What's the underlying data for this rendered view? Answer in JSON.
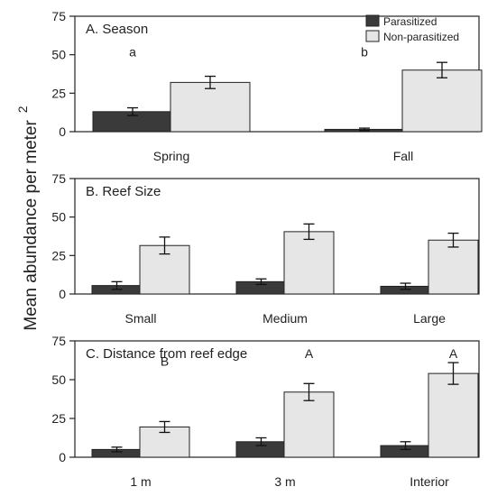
{
  "figure": {
    "ylabel": "Mean abundance per meter",
    "ylabel_superscript": "2"
  },
  "legend": {
    "placement": "top-right",
    "entries": [
      {
        "name": "Parasitized",
        "color": "#3a3a3a"
      },
      {
        "name": "Non-parasitized",
        "color": "#e6e6e6"
      }
    ]
  },
  "chart_data": [
    {
      "type": "bar",
      "title": "A. Season",
      "categories": [
        "Spring",
        "Fall"
      ],
      "ylim": [
        0,
        75
      ],
      "yticks": [
        0,
        25,
        50,
        75
      ],
      "grid": false,
      "series": [
        {
          "name": "Parasitized",
          "color": "#3a3a3a",
          "values": [
            13,
            1.5
          ],
          "errors": [
            2.5,
            0.8
          ]
        },
        {
          "name": "Non-parasitized",
          "color": "#e6e6e6",
          "values": [
            32,
            40
          ],
          "errors": [
            4,
            5
          ]
        }
      ],
      "annotations": [
        {
          "text": "a",
          "category": 0,
          "y": 52
        },
        {
          "text": "b",
          "category": 1,
          "y": 52
        }
      ]
    },
    {
      "type": "bar",
      "title": "B. Reef Size",
      "categories": [
        "Small",
        "Medium",
        "Large"
      ],
      "ylim": [
        0,
        75
      ],
      "yticks": [
        0,
        25,
        50,
        75
      ],
      "grid": false,
      "series": [
        {
          "name": "Parasitized",
          "color": "#3a3a3a",
          "values": [
            5.5,
            8,
            5
          ],
          "errors": [
            2.5,
            1.8,
            2
          ]
        },
        {
          "name": "Non-parasitized",
          "color": "#e6e6e6",
          "values": [
            31.5,
            40.5,
            35
          ],
          "errors": [
            5.5,
            5,
            4.5
          ]
        }
      ],
      "annotations": []
    },
    {
      "type": "bar",
      "title": "C. Distance from reef edge",
      "categories": [
        "1 m",
        "3 m",
        "Interior"
      ],
      "ylim": [
        0,
        75
      ],
      "yticks": [
        0,
        25,
        50,
        75
      ],
      "grid": false,
      "series": [
        {
          "name": "Parasitized",
          "color": "#3a3a3a",
          "values": [
            5,
            10,
            7.5
          ],
          "errors": [
            1.5,
            2.5,
            2.5
          ]
        },
        {
          "name": "Non-parasitized",
          "color": "#e6e6e6",
          "values": [
            19.5,
            42,
            54
          ],
          "errors": [
            3.5,
            5.5,
            7
          ]
        }
      ],
      "annotations": [
        {
          "text": "B",
          "category": 0,
          "y": 62
        },
        {
          "text": "A",
          "category": 1,
          "y": 67
        },
        {
          "text": "A",
          "category": 2,
          "y": 67
        }
      ]
    }
  ]
}
